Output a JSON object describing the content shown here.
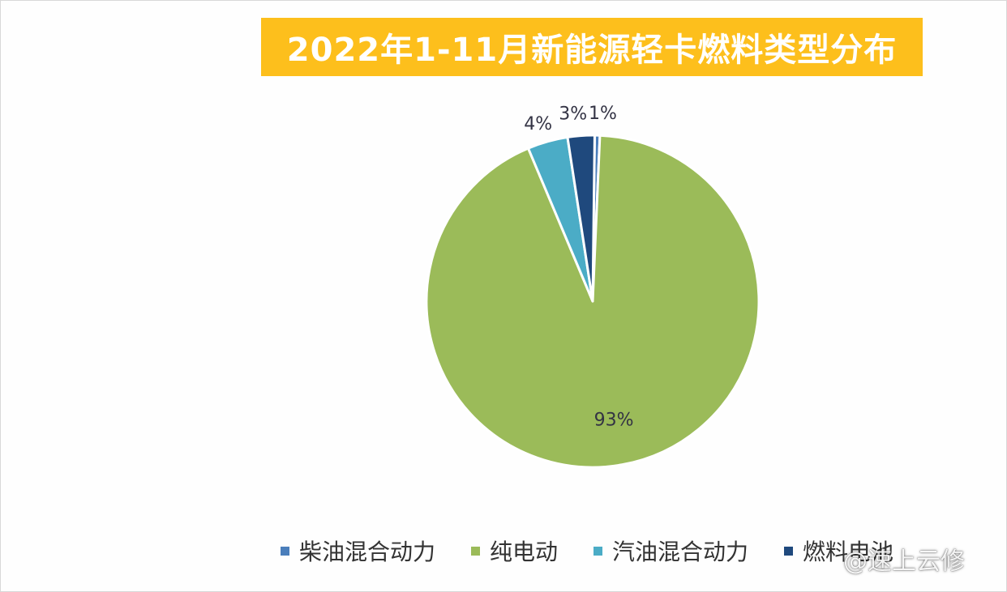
{
  "chart_data": {
    "type": "pie",
    "title": "2022年1-11月新能源轻卡燃料类型分布",
    "categories": [
      "柴油混合动力",
      "纯电动",
      "汽油混合动力",
      "燃料电池"
    ],
    "values": [
      0.5,
      92.5,
      3.9,
      2.6
    ],
    "data_labels": [
      "1%",
      "93%",
      "4%",
      "3%"
    ],
    "colors": [
      "#4a7ebb",
      "#9bbb59",
      "#4bacc6",
      "#1f497d"
    ],
    "legend_position": "bottom"
  },
  "watermark": "@速上云修"
}
